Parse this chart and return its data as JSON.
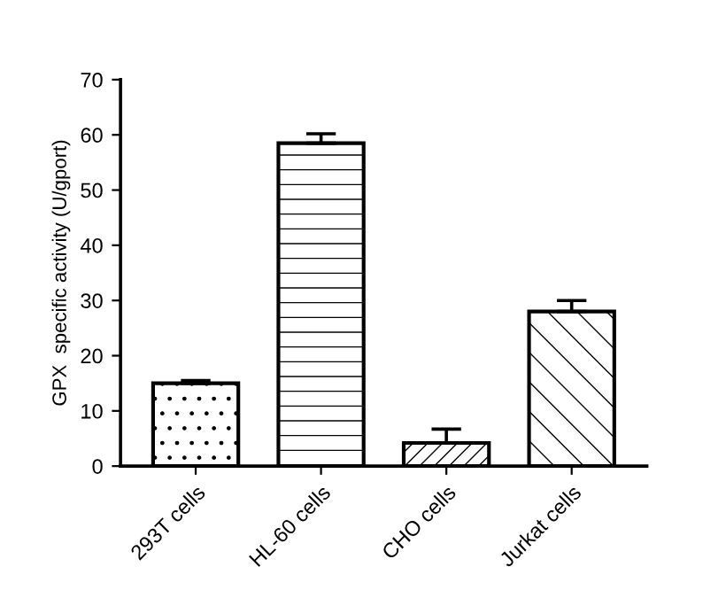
{
  "chart_data": {
    "type": "bar",
    "ylabel": "GPX  specific activity (U/gport)",
    "categories": [
      "293T cells",
      "HL-60 cells",
      "CHO cells",
      "Jurkat cells"
    ],
    "values": [
      15,
      58.5,
      4.2,
      28
    ],
    "errors": [
      [
        15,
        15.5
      ],
      [
        58.5,
        60.2
      ],
      [
        4.2,
        6.7
      ],
      [
        28,
        30
      ]
    ],
    "ylim": [
      0,
      70
    ],
    "yticks": [
      0,
      10,
      20,
      30,
      40,
      50,
      60,
      70
    ],
    "grid": false,
    "legend": false
  }
}
